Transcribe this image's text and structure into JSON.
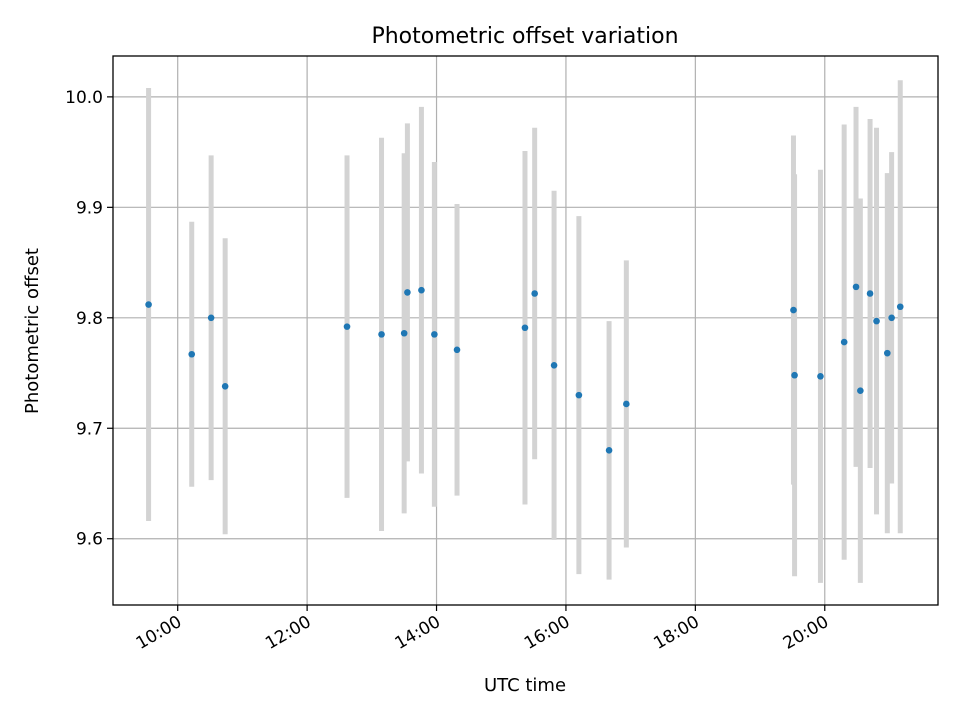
{
  "chart_data": {
    "type": "scatter",
    "title": "Photometric offset variation",
    "xlabel": "UTC time",
    "ylabel": "Photometric offset",
    "grid": true,
    "marker_color": "#1f77b4",
    "errorbar_color": "#d3d3d3",
    "xlim": [
      "09:00",
      "21:45"
    ],
    "ylim": [
      9.54,
      10.037
    ],
    "xticks": [
      "10:00",
      "12:00",
      "14:00",
      "16:00",
      "18:00",
      "20:00"
    ],
    "yticks": [
      "9.6",
      "9.7",
      "9.8",
      "9.9",
      "10.0"
    ],
    "points": [
      {
        "x": "09:33",
        "y": 9.812,
        "err": 0.196
      },
      {
        "x": "10:13",
        "y": 9.767,
        "err": 0.12
      },
      {
        "x": "10:31",
        "y": 9.8,
        "err": 0.147
      },
      {
        "x": "10:44",
        "y": 9.738,
        "err": 0.134
      },
      {
        "x": "12:37",
        "y": 9.792,
        "err": 0.155
      },
      {
        "x": "13:09",
        "y": 9.785,
        "err": 0.178
      },
      {
        "x": "13:30",
        "y": 9.786,
        "err": 0.163
      },
      {
        "x": "13:33",
        "y": 9.823,
        "err": 0.153
      },
      {
        "x": "13:46",
        "y": 9.825,
        "err": 0.166
      },
      {
        "x": "13:58",
        "y": 9.785,
        "err": 0.156
      },
      {
        "x": "14:19",
        "y": 9.771,
        "err": 0.132
      },
      {
        "x": "15:22",
        "y": 9.791,
        "err": 0.16
      },
      {
        "x": "15:31",
        "y": 9.822,
        "err": 0.15
      },
      {
        "x": "15:49",
        "y": 9.757,
        "err": 0.158
      },
      {
        "x": "16:12",
        "y": 9.73,
        "err": 0.162
      },
      {
        "x": "16:40",
        "y": 9.68,
        "err": 0.117
      },
      {
        "x": "16:56",
        "y": 9.722,
        "err": 0.13
      },
      {
        "x": "19:31",
        "y": 9.807,
        "err": 0.158
      },
      {
        "x": "19:32",
        "y": 9.748,
        "err": 0.182
      },
      {
        "x": "19:56",
        "y": 9.747,
        "err": 0.187
      },
      {
        "x": "20:18",
        "y": 9.778,
        "err": 0.197
      },
      {
        "x": "20:29",
        "y": 9.828,
        "err": 0.163
      },
      {
        "x": "20:33",
        "y": 9.734,
        "err": 0.174
      },
      {
        "x": "20:42",
        "y": 9.822,
        "err": 0.158
      },
      {
        "x": "20:48",
        "y": 9.797,
        "err": 0.175
      },
      {
        "x": "20:58",
        "y": 9.768,
        "err": 0.163
      },
      {
        "x": "21:02",
        "y": 9.8,
        "err": 0.15
      },
      {
        "x": "21:10",
        "y": 9.81,
        "err": 0.205
      }
    ]
  }
}
